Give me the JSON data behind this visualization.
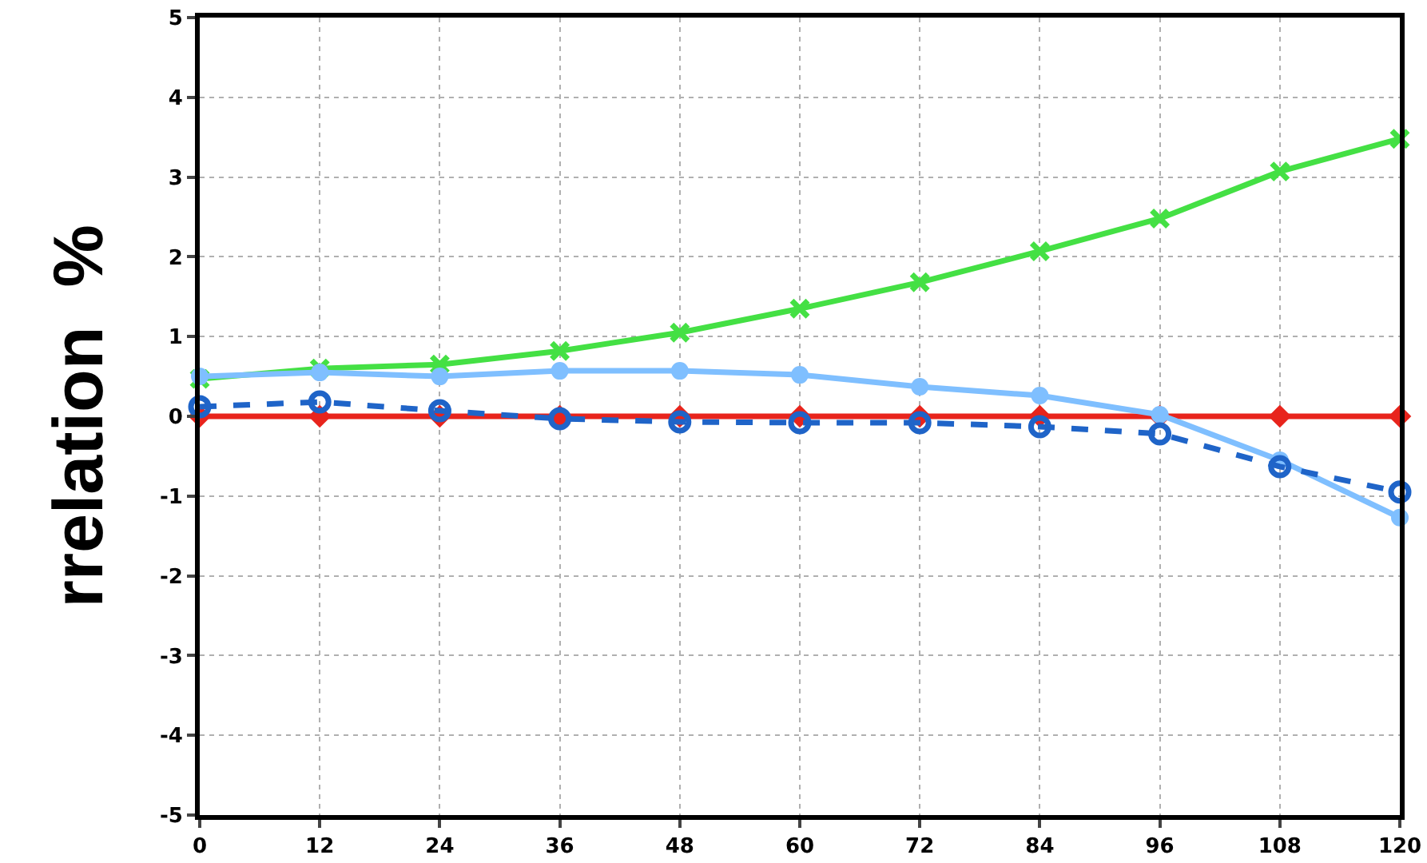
{
  "chart_data": {
    "type": "line",
    "ylabel": "rrelation  %",
    "x": [
      0,
      12,
      24,
      36,
      48,
      60,
      72,
      84,
      96,
      108,
      120
    ],
    "xlim": [
      0,
      120
    ],
    "xticks": [
      0,
      12,
      24,
      36,
      48,
      60,
      72,
      84,
      96,
      108,
      120
    ],
    "ylim": [
      -5,
      5
    ],
    "yticks": [
      -5,
      -4,
      -3,
      -2,
      -1,
      0,
      1,
      2,
      3,
      4,
      5
    ],
    "grid": true,
    "legend": false,
    "series": [
      {
        "color": "#e8241c",
        "marker": "diamond",
        "line_style": "solid",
        "values": [
          0,
          0,
          0,
          0,
          0,
          0,
          0,
          0,
          0,
          0,
          0
        ]
      },
      {
        "color": "#44e044",
        "marker": "cross",
        "line_style": "solid",
        "values": [
          0.47,
          0.6,
          0.65,
          0.82,
          1.05,
          1.35,
          1.68,
          2.07,
          2.48,
          3.07,
          3.48
        ]
      },
      {
        "color": "#7fbfff",
        "marker": "circle",
        "line_style": "solid",
        "values": [
          0.5,
          0.55,
          0.5,
          0.57,
          0.57,
          0.52,
          0.37,
          0.26,
          0.02,
          -0.55,
          -1.27
        ]
      },
      {
        "color": "#1f64c8",
        "marker": "circle",
        "line_style": "dashed",
        "values": [
          0.12,
          0.18,
          0.07,
          -0.03,
          -0.07,
          -0.08,
          -0.08,
          -0.13,
          -0.22,
          -0.63,
          -0.95
        ]
      }
    ]
  }
}
